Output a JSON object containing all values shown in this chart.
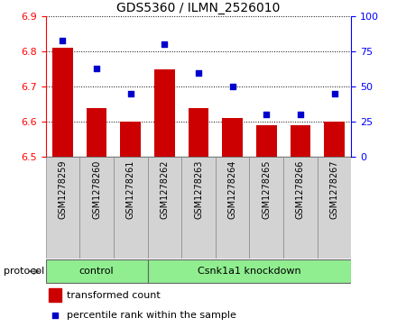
{
  "title": "GDS5360 / ILMN_2526010",
  "samples": [
    "GSM1278259",
    "GSM1278260",
    "GSM1278261",
    "GSM1278262",
    "GSM1278263",
    "GSM1278264",
    "GSM1278265",
    "GSM1278266",
    "GSM1278267"
  ],
  "transformed_counts": [
    6.81,
    6.64,
    6.6,
    6.75,
    6.64,
    6.61,
    6.59,
    6.59,
    6.6
  ],
  "percentile_ranks": [
    83,
    63,
    45,
    80,
    60,
    50,
    30,
    30,
    45
  ],
  "ylim_left": [
    6.5,
    6.9
  ],
  "ylim_right": [
    0,
    100
  ],
  "yticks_left": [
    6.5,
    6.6,
    6.7,
    6.8,
    6.9
  ],
  "yticks_right": [
    0,
    25,
    50,
    75,
    100
  ],
  "bar_color": "#cc0000",
  "dot_color": "#0000cc",
  "bar_bottom": 6.5,
  "control_label": "control",
  "knockdown_label": "Csnk1a1 knockdown",
  "protocol_label": "protocol",
  "legend_bar_label": "transformed count",
  "legend_dot_label": "percentile rank within the sample",
  "group_color": "#90ee90",
  "tick_bg_color": "#d3d3d3",
  "n_control": 3,
  "title_fontsize": 10,
  "tick_fontsize": 7,
  "legend_fontsize": 8,
  "protocol_fontsize": 8,
  "group_fontsize": 8
}
